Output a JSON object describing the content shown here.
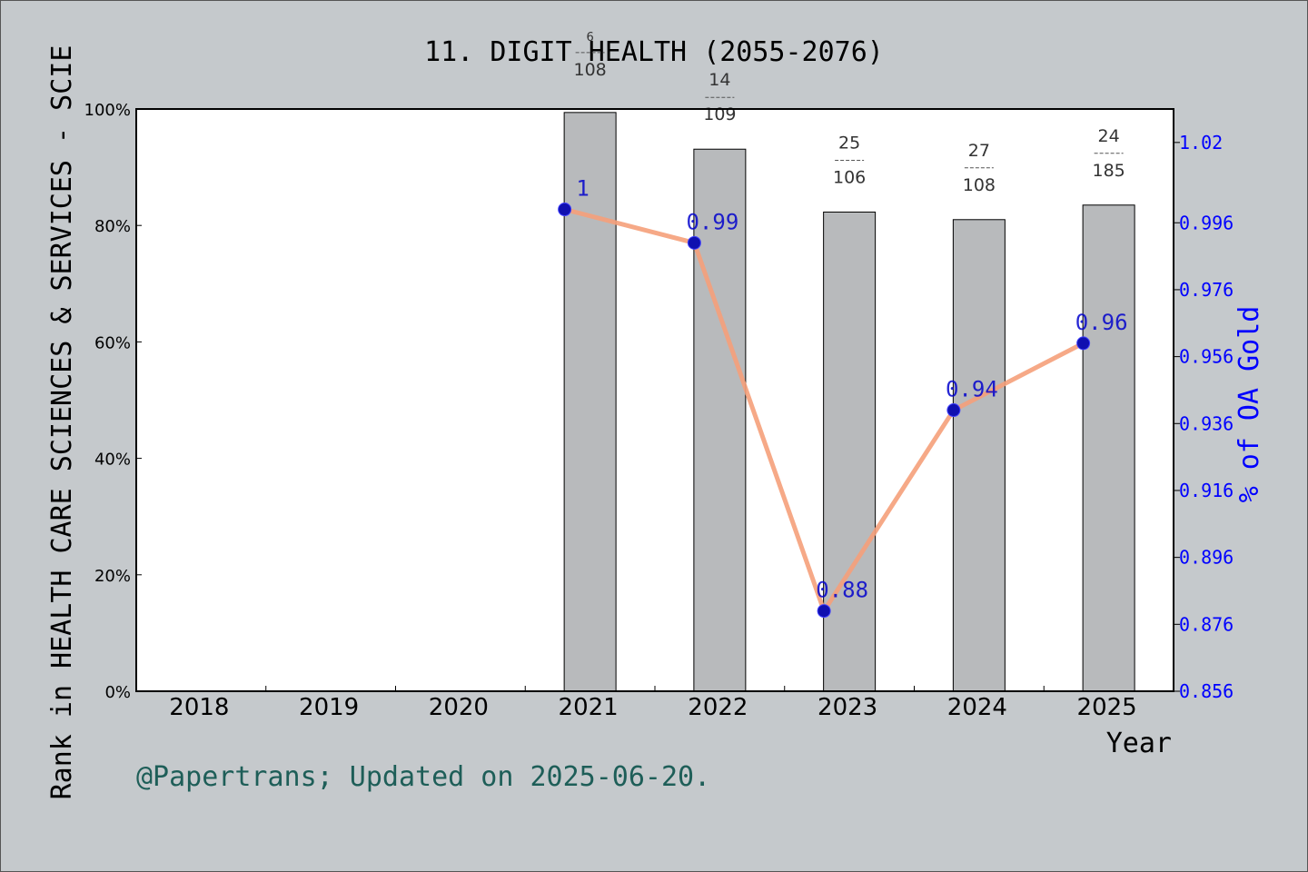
{
  "chart_data": {
    "type": "bar",
    "title": "11. DIGIT HEALTH (2055-2076)",
    "xlabel": "Year",
    "ylabel": "Rank in HEALTH CARE SCIENCES & SERVICES - SCIE",
    "y2label": "% of OA Gold",
    "footer": "@Papertrans; Updated on 2025-06-20.",
    "categories": [
      "2018",
      "2019",
      "2020",
      "2021",
      "2022",
      "2023",
      "2024",
      "2025"
    ],
    "ylim": [
      0,
      100
    ],
    "y_ticks": [
      "0%",
      "20%",
      "40%",
      "60%",
      "80%",
      "100%"
    ],
    "y2lim": [
      0.856,
      1.03
    ],
    "y2_ticks": [
      "0.856",
      "0.876",
      "0.896",
      "0.916",
      "0.936",
      "0.956",
      "0.976",
      "0.996",
      "1.02"
    ],
    "bar_values": [
      null,
      null,
      null,
      99.4,
      93.1,
      82.3,
      81.0,
      83.5
    ],
    "bar_labels": [
      null,
      null,
      null,
      {
        "rank": "6",
        "total": "108"
      },
      {
        "rank": "14",
        "total": "109"
      },
      {
        "rank": "25",
        "total": "106"
      },
      {
        "rank": "27",
        "total": "108"
      },
      {
        "rank": "24",
        "total": "185"
      }
    ],
    "line_values": [
      null,
      null,
      null,
      1.0,
      0.99,
      0.88,
      0.94,
      0.96
    ],
    "line_labels": [
      null,
      null,
      null,
      "1",
      "0.99",
      "0.88",
      "0.94",
      "0.96"
    ],
    "colors": {
      "background": "#c5c9cc",
      "plot_bg": "#ffffff",
      "bar": "#b8babc",
      "line": "#f5a07a",
      "marker": "#1010b0",
      "y2_axis": "#0000ff",
      "footer": "#1e5e58"
    },
    "grid": false
  }
}
